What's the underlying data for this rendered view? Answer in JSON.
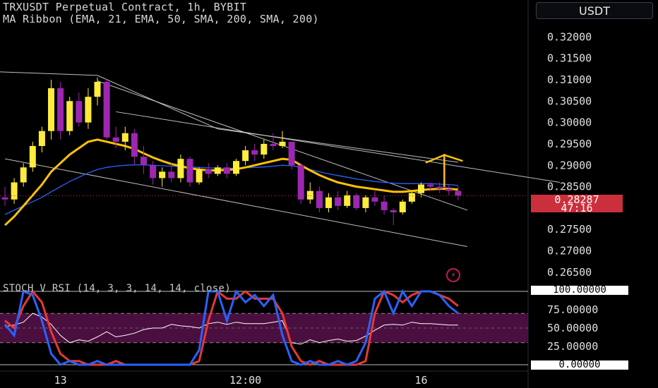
{
  "header": {
    "title": "TRXUSDT Perpetual Contract, 1h, BYBIT",
    "indicator": "MA Ribbon (EMA, 21, EMA, 50, SMA, 200, SMA, 200)",
    "stoch_label": "STOCH V RSI (14, 3, 3, 14, 14, close)"
  },
  "currency_button": "USDT",
  "price_badge": {
    "price": "0.28287",
    "countdown": "47:16"
  },
  "osc_badges": {
    "top": "100.00000",
    "bottom": "0.00000"
  },
  "icons": {
    "alert": "lightning-icon"
  },
  "colors": {
    "up": "#ffeb3b",
    "down": "#9c27b0",
    "ema21": "#ffc107",
    "ema50": "#2962ff",
    "channel": "#e0e0e0",
    "k": "#2962ff",
    "d": "#e53935",
    "rsi": "#ffffff",
    "band": "#4a0f3f",
    "badge": "#cc2f3c"
  },
  "chart_data": [
    {
      "type": "candlestick",
      "symbol": "TRXUSDT",
      "timeframe": "1h",
      "y_ticks": [
        "0.32000",
        "0.31500",
        "0.31000",
        "0.30500",
        "0.30000",
        "0.29500",
        "0.29000",
        "0.28500",
        "0.28000",
        "0.27500",
        "0.27000",
        "0.26500"
      ],
      "ylim": [
        0.2635,
        0.3245
      ],
      "x_ticks": [
        {
          "label": "13",
          "index": 6
        },
        {
          "label": "12:00",
          "index": 26
        },
        {
          "label": "16",
          "index": 45
        }
      ],
      "candles": [
        [
          0.2825,
          0.285,
          0.2805,
          0.282
        ],
        [
          0.282,
          0.287,
          0.281,
          0.286
        ],
        [
          0.286,
          0.2905,
          0.285,
          0.2895
        ],
        [
          0.2895,
          0.2955,
          0.2885,
          0.2945
        ],
        [
          0.2945,
          0.299,
          0.293,
          0.298
        ],
        [
          0.298,
          0.31,
          0.296,
          0.308
        ],
        [
          0.308,
          0.3095,
          0.296,
          0.298
        ],
        [
          0.298,
          0.306,
          0.297,
          0.305
        ],
        [
          0.305,
          0.307,
          0.299,
          0.3
        ],
        [
          0.3,
          0.308,
          0.2985,
          0.306
        ],
        [
          0.306,
          0.3105,
          0.304,
          0.3095
        ],
        [
          0.3095,
          0.31,
          0.296,
          0.2965
        ],
        [
          0.2965,
          0.299,
          0.294,
          0.2955
        ],
        [
          0.2955,
          0.299,
          0.2935,
          0.2975
        ],
        [
          0.2975,
          0.2985,
          0.29,
          0.292
        ],
        [
          0.292,
          0.2945,
          0.288,
          0.29
        ],
        [
          0.29,
          0.291,
          0.2855,
          0.287
        ],
        [
          0.287,
          0.2895,
          0.285,
          0.2885
        ],
        [
          0.2885,
          0.2905,
          0.286,
          0.287
        ],
        [
          0.287,
          0.2925,
          0.286,
          0.2915
        ],
        [
          0.2915,
          0.292,
          0.285,
          0.286
        ],
        [
          0.286,
          0.2895,
          0.2855,
          0.289
        ],
        [
          0.289,
          0.2905,
          0.287,
          0.288
        ],
        [
          0.288,
          0.29,
          0.2875,
          0.2895
        ],
        [
          0.2895,
          0.2905,
          0.287,
          0.288
        ],
        [
          0.288,
          0.2915,
          0.2875,
          0.291
        ],
        [
          0.291,
          0.2945,
          0.29,
          0.2935
        ],
        [
          0.2935,
          0.295,
          0.291,
          0.2925
        ],
        [
          0.2925,
          0.296,
          0.2915,
          0.295
        ],
        [
          0.295,
          0.2975,
          0.2935,
          0.2945
        ],
        [
          0.2945,
          0.298,
          0.294,
          0.2955
        ],
        [
          0.2955,
          0.295,
          0.289,
          0.29
        ],
        [
          0.29,
          0.2905,
          0.281,
          0.282
        ],
        [
          0.282,
          0.286,
          0.281,
          0.284
        ],
        [
          0.284,
          0.285,
          0.279,
          0.28
        ],
        [
          0.28,
          0.2835,
          0.279,
          0.2825
        ],
        [
          0.2825,
          0.284,
          0.2795,
          0.2805
        ],
        [
          0.2805,
          0.284,
          0.28,
          0.283
        ],
        [
          0.283,
          0.2835,
          0.2795,
          0.28
        ],
        [
          0.28,
          0.283,
          0.279,
          0.2825
        ],
        [
          0.2825,
          0.284,
          0.2805,
          0.2815
        ],
        [
          0.2815,
          0.283,
          0.2785,
          0.2795
        ],
        [
          0.2795,
          0.28,
          0.276,
          0.279
        ],
        [
          0.279,
          0.282,
          0.2785,
          0.2815
        ],
        [
          0.2815,
          0.284,
          0.281,
          0.2835
        ],
        [
          0.2835,
          0.286,
          0.2825,
          0.2855
        ],
        [
          0.2855,
          0.286,
          0.284,
          0.285
        ],
        [
          0.285,
          0.286,
          0.2835,
          0.2845
        ],
        [
          0.2845,
          0.2855,
          0.283,
          0.284
        ],
        [
          0.284,
          0.2852,
          0.2818,
          0.2829
        ]
      ],
      "ema21": [
        0.276,
        0.278,
        0.2805,
        0.283,
        0.2855,
        0.2885,
        0.2905,
        0.2925,
        0.294,
        0.2955,
        0.296,
        0.2955,
        0.295,
        0.2945,
        0.2938,
        0.2928,
        0.2918,
        0.291,
        0.2903,
        0.2898,
        0.2893,
        0.289,
        0.2888,
        0.2888,
        0.2889,
        0.2891,
        0.2895,
        0.29,
        0.2905,
        0.291,
        0.2915,
        0.2913,
        0.29,
        0.2888,
        0.2877,
        0.2868,
        0.286,
        0.2855,
        0.285,
        0.2847,
        0.2844,
        0.2841,
        0.2838,
        0.2838,
        0.284,
        0.2842,
        0.2844,
        0.2845,
        0.2845,
        0.2843
      ],
      "ema50": [
        0.2785,
        0.2795,
        0.2805,
        0.2815,
        0.2825,
        0.2838,
        0.285,
        0.2862,
        0.2872,
        0.2882,
        0.289,
        0.2895,
        0.2898,
        0.29,
        0.2901,
        0.2901,
        0.29,
        0.2899,
        0.2898,
        0.2897,
        0.2896,
        0.2895,
        0.2894,
        0.2893,
        0.2893,
        0.2893,
        0.2894,
        0.2895,
        0.2896,
        0.2898,
        0.29,
        0.2899,
        0.2895,
        0.289,
        0.2885,
        0.288,
        0.2876,
        0.2872,
        0.2868,
        0.2865,
        0.2862,
        0.286,
        0.2858,
        0.2857,
        0.2857,
        0.2857,
        0.2857,
        0.2856,
        0.2855,
        0.2853
      ],
      "channel_lines": [
        {
          "from": [
            0,
            0.2915
          ],
          "to": [
            50,
            0.271
          ]
        },
        {
          "from": [
            10,
            0.3097
          ],
          "to": [
            50,
            0.2795
          ]
        },
        {
          "from": [
            12,
            0.3025
          ],
          "to": [
            60,
            0.286
          ]
        },
        {
          "from": [
            -9,
            0.3125
          ],
          "to": [
            10,
            0.311
          ]
        },
        {
          "from": [
            10,
            0.311
          ],
          "to": [
            23,
            0.2985
          ]
        },
        {
          "from": [
            23,
            0.2985
          ],
          "to": [
            49,
            0.2907
          ]
        }
      ],
      "projection": [
        [
          45.5,
          0.2906
        ],
        [
          47.5,
          0.2924
        ],
        [
          47.5,
          0.2849
        ],
        [
          47.5,
          0.2924
        ],
        [
          49.5,
          0.291
        ]
      ],
      "last_price": 0.28287,
      "countdown": "47:16"
    },
    {
      "type": "line",
      "name": "STOCH V RSI",
      "y_ticks": [
        "100.00000",
        "75.00000",
        "50.00000",
        "25.00000",
        "0.00000"
      ],
      "ylim": [
        0,
        100
      ],
      "band": [
        30,
        70
      ],
      "k": [
        55,
        40,
        100,
        95,
        60,
        15,
        0,
        5,
        0,
        0,
        5,
        0,
        0,
        0,
        0,
        0,
        0,
        0,
        0,
        0,
        0,
        20,
        100,
        100,
        60,
        100,
        85,
        95,
        80,
        95,
        40,
        5,
        0,
        5,
        0,
        0,
        5,
        0,
        5,
        30,
        90,
        100,
        70,
        100,
        80,
        100,
        100,
        95,
        80,
        70
      ],
      "d": [
        60,
        50,
        80,
        100,
        85,
        45,
        15,
        5,
        5,
        0,
        0,
        0,
        5,
        0,
        0,
        0,
        0,
        0,
        0,
        0,
        0,
        5,
        60,
        100,
        90,
        90,
        100,
        90,
        90,
        90,
        70,
        25,
        5,
        0,
        5,
        0,
        0,
        0,
        0,
        5,
        70,
        100,
        95,
        85,
        95,
        100,
        100,
        95,
        90,
        80
      ],
      "rsi": [
        52,
        54,
        58,
        70,
        65,
        55,
        40,
        30,
        34,
        32,
        38,
        45,
        38,
        40,
        43,
        48,
        50,
        50,
        55,
        53,
        52,
        50,
        56,
        58,
        55,
        58,
        56,
        56,
        56,
        58,
        60,
        30,
        28,
        34,
        30,
        33,
        35,
        32,
        33,
        39,
        47,
        54,
        55,
        54,
        58,
        56,
        56,
        55,
        54,
        54
      ]
    }
  ]
}
